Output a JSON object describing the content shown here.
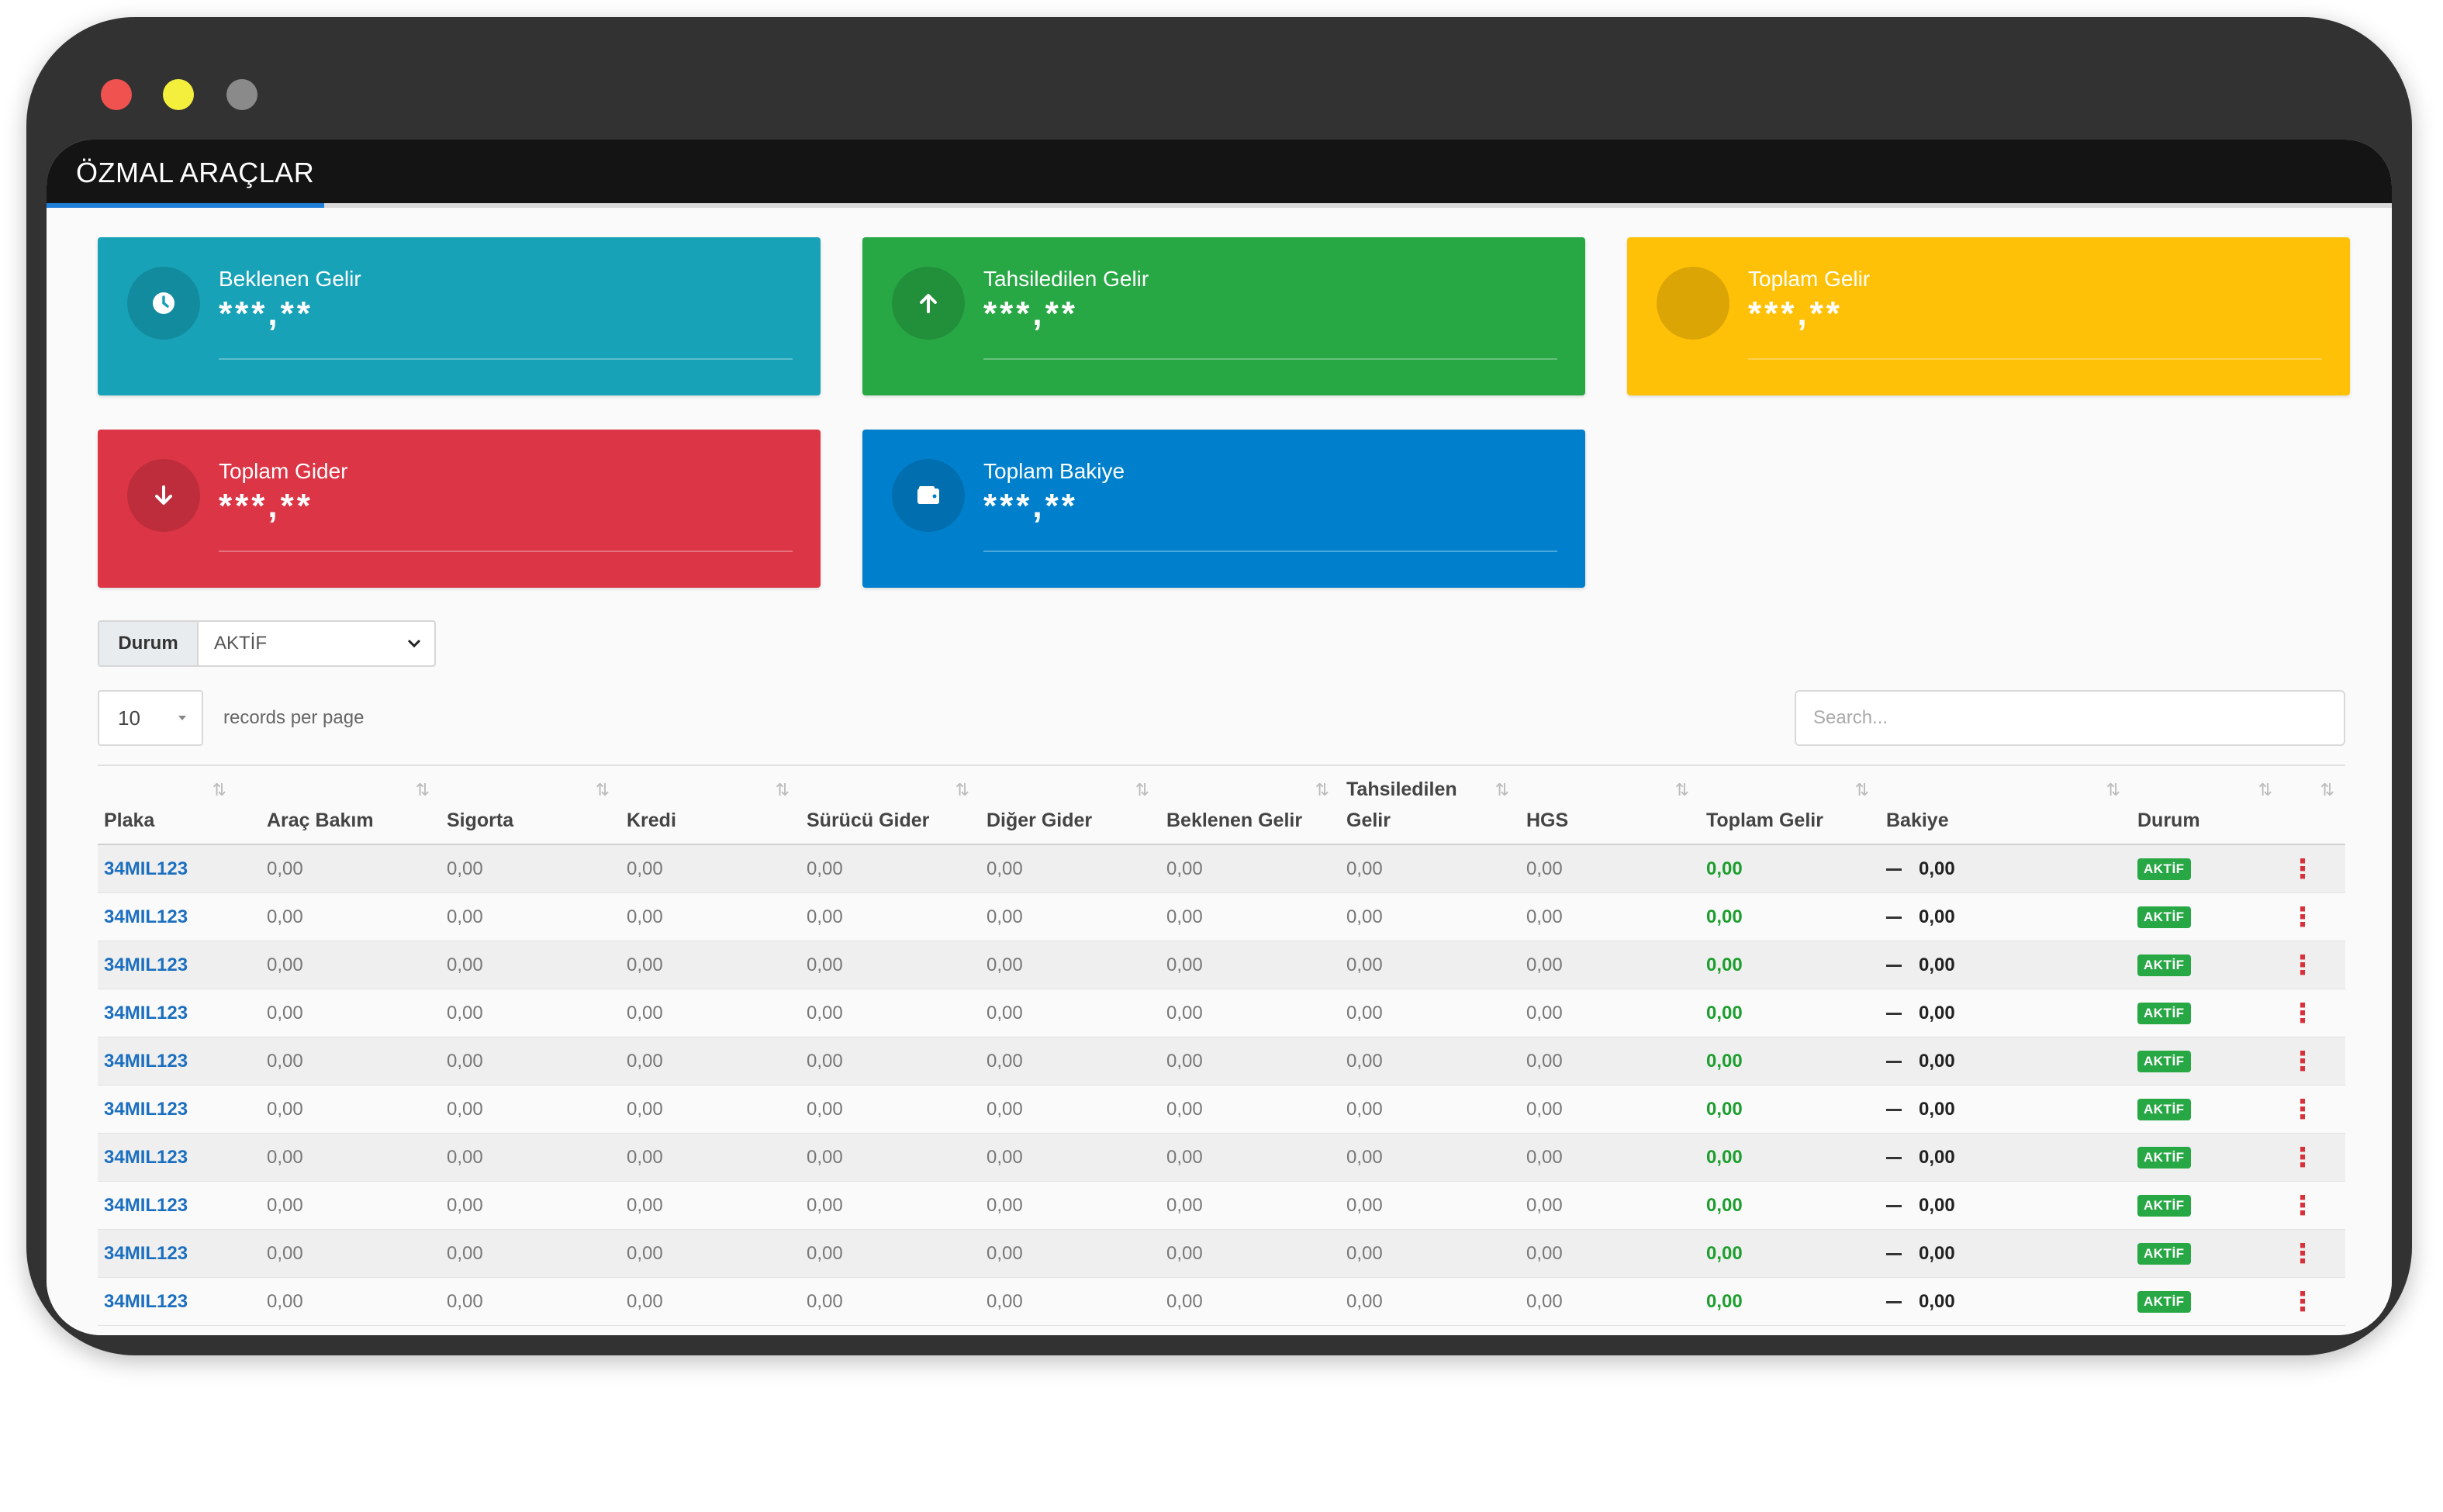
{
  "window": {
    "title": "ÖZMAL ARAÇLAR"
  },
  "stats": [
    {
      "label": "Beklenen Gelir",
      "value": "***,**",
      "icon": "clock-icon",
      "color": "#17a2b8"
    },
    {
      "label": "Tahsiledilen Gelir",
      "value": "***,**",
      "icon": "arrow-up-icon",
      "color": "#28a745"
    },
    {
      "label": "Toplam Gelir",
      "value": "***,**",
      "icon": "circle-icon",
      "color": "#ffc107"
    },
    {
      "label": "Toplam Gider",
      "value": "***,**",
      "icon": "arrow-down-icon",
      "color": "#dc3545"
    },
    {
      "label": "Toplam Bakiye",
      "value": "***,**",
      "icon": "wallet-icon",
      "color": "#0080cc"
    }
  ],
  "filter": {
    "label": "Durum",
    "value": "AKTİF"
  },
  "pagination": {
    "page_size": "10",
    "records_label": "records per page"
  },
  "search": {
    "placeholder": "Search..."
  },
  "table": {
    "columns": [
      "Plaka",
      "Araç Bakım",
      "Sigorta",
      "Kredi",
      "Sürücü Gider",
      "Diğer Gider",
      "Beklenen Gelir",
      "Tahsiledilen Gelir",
      "HGS",
      "Toplam Gelir",
      "Bakiye",
      "Durum",
      ""
    ],
    "rows": [
      {
        "plaka": "34MIL123",
        "arac_bakim": "0,00",
        "sigorta": "0,00",
        "kredi": "0,00",
        "surucu_gider": "0,00",
        "diger_gider": "0,00",
        "beklenen_gelir": "0,00",
        "tahsiledilen_gelir": "0,00",
        "hgs": "0,00",
        "toplam_gelir": "0,00",
        "bakiye": "0,00",
        "durum": "AKTİF"
      },
      {
        "plaka": "34MIL123",
        "arac_bakim": "0,00",
        "sigorta": "0,00",
        "kredi": "0,00",
        "surucu_gider": "0,00",
        "diger_gider": "0,00",
        "beklenen_gelir": "0,00",
        "tahsiledilen_gelir": "0,00",
        "hgs": "0,00",
        "toplam_gelir": "0,00",
        "bakiye": "0,00",
        "durum": "AKTİF"
      },
      {
        "plaka": "34MIL123",
        "arac_bakim": "0,00",
        "sigorta": "0,00",
        "kredi": "0,00",
        "surucu_gider": "0,00",
        "diger_gider": "0,00",
        "beklenen_gelir": "0,00",
        "tahsiledilen_gelir": "0,00",
        "hgs": "0,00",
        "toplam_gelir": "0,00",
        "bakiye": "0,00",
        "durum": "AKTİF"
      },
      {
        "plaka": "34MIL123",
        "arac_bakim": "0,00",
        "sigorta": "0,00",
        "kredi": "0,00",
        "surucu_gider": "0,00",
        "diger_gider": "0,00",
        "beklenen_gelir": "0,00",
        "tahsiledilen_gelir": "0,00",
        "hgs": "0,00",
        "toplam_gelir": "0,00",
        "bakiye": "0,00",
        "durum": "AKTİF"
      },
      {
        "plaka": "34MIL123",
        "arac_bakim": "0,00",
        "sigorta": "0,00",
        "kredi": "0,00",
        "surucu_gider": "0,00",
        "diger_gider": "0,00",
        "beklenen_gelir": "0,00",
        "tahsiledilen_gelir": "0,00",
        "hgs": "0,00",
        "toplam_gelir": "0,00",
        "bakiye": "0,00",
        "durum": "AKTİF"
      },
      {
        "plaka": "34MIL123",
        "arac_bakim": "0,00",
        "sigorta": "0,00",
        "kredi": "0,00",
        "surucu_gider": "0,00",
        "diger_gider": "0,00",
        "beklenen_gelir": "0,00",
        "tahsiledilen_gelir": "0,00",
        "hgs": "0,00",
        "toplam_gelir": "0,00",
        "bakiye": "0,00",
        "durum": "AKTİF"
      },
      {
        "plaka": "34MIL123",
        "arac_bakim": "0,00",
        "sigorta": "0,00",
        "kredi": "0,00",
        "surucu_gider": "0,00",
        "diger_gider": "0,00",
        "beklenen_gelir": "0,00",
        "tahsiledilen_gelir": "0,00",
        "hgs": "0,00",
        "toplam_gelir": "0,00",
        "bakiye": "0,00",
        "durum": "AKTİF"
      },
      {
        "plaka": "34MIL123",
        "arac_bakim": "0,00",
        "sigorta": "0,00",
        "kredi": "0,00",
        "surucu_gider": "0,00",
        "diger_gider": "0,00",
        "beklenen_gelir": "0,00",
        "tahsiledilen_gelir": "0,00",
        "hgs": "0,00",
        "toplam_gelir": "0,00",
        "bakiye": "0,00",
        "durum": "AKTİF"
      },
      {
        "plaka": "34MIL123",
        "arac_bakim": "0,00",
        "sigorta": "0,00",
        "kredi": "0,00",
        "surucu_gider": "0,00",
        "diger_gider": "0,00",
        "beklenen_gelir": "0,00",
        "tahsiledilen_gelir": "0,00",
        "hgs": "0,00",
        "toplam_gelir": "0,00",
        "bakiye": "0,00",
        "durum": "AKTİF"
      },
      {
        "plaka": "34MIL123",
        "arac_bakim": "0,00",
        "sigorta": "0,00",
        "kredi": "0,00",
        "surucu_gider": "0,00",
        "diger_gider": "0,00",
        "beklenen_gelir": "0,00",
        "tahsiledilen_gelir": "0,00",
        "hgs": "0,00",
        "toplam_gelir": "0,00",
        "bakiye": "0,00",
        "durum": "AKTİF"
      }
    ]
  }
}
